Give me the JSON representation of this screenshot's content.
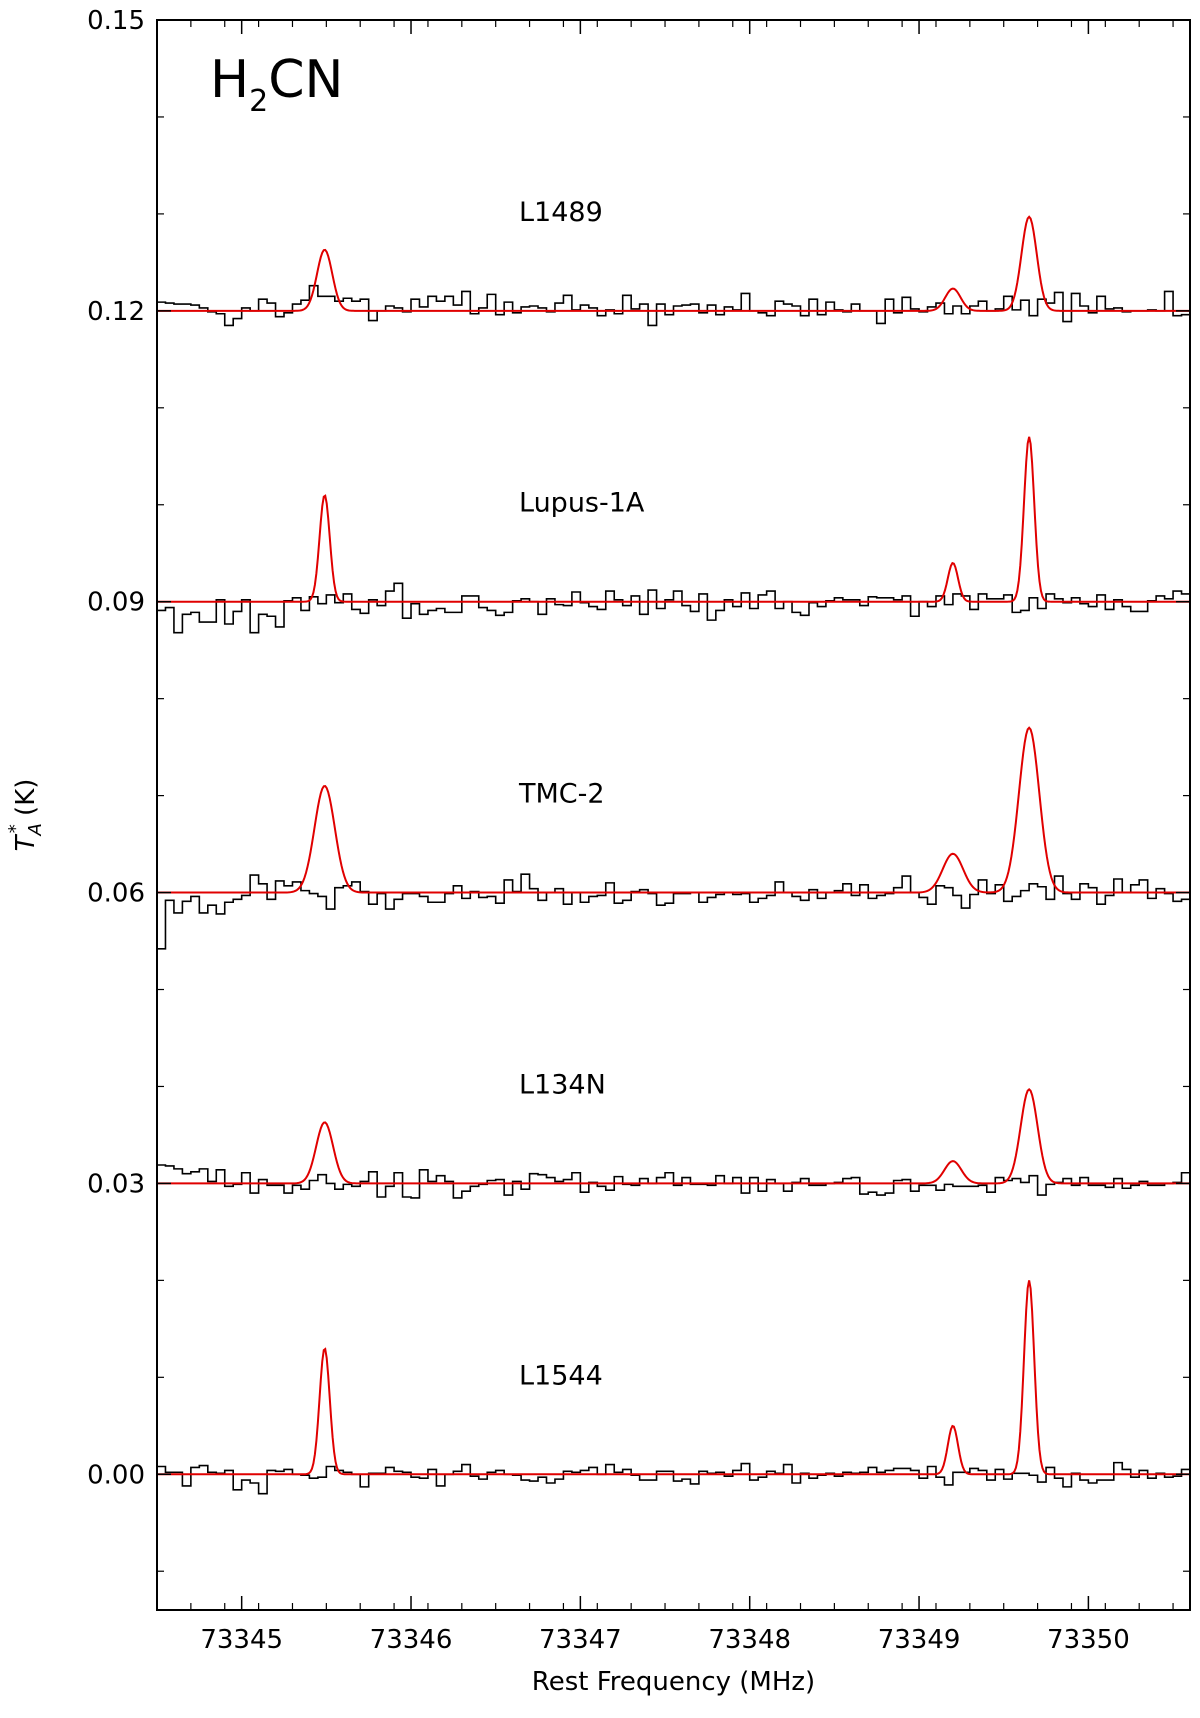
{
  "chart_data": {
    "type": "line",
    "title": "",
    "species_label": {
      "main": "H",
      "sub": "2",
      "rest": "CN"
    },
    "xlabel": "Rest Frequency (MHz)",
    "ylabel": {
      "main": "T",
      "sub": "A",
      "sup": "*",
      "unit": " (K)"
    },
    "xlim": [
      73344.5,
      73350.6
    ],
    "ylim": [
      -0.014,
      0.15
    ],
    "xticks": [
      73345,
      73346,
      73347,
      73348,
      73349,
      73350
    ],
    "xtick_labels": [
      "73345",
      "73346",
      "73347",
      "73348",
      "73349",
      "73350"
    ],
    "yticks": [
      0.0,
      0.03,
      0.06,
      0.09,
      0.12,
      0.15
    ],
    "ytick_labels": [
      "0.00",
      "0.03",
      "0.06",
      "0.09",
      "0.12",
      "0.15"
    ],
    "grid": false,
    "channel_width_mhz": 0.05,
    "spectrum_color": "#000000",
    "fit_color": "#e00000",
    "line_centers_mhz": [
      73345.49,
      73349.2,
      73349.65
    ],
    "series": [
      {
        "name": "L1489",
        "offset": 0.12,
        "fit_peaks": [
          0.0063,
          0.0023,
          0.0097
        ],
        "fit_sigmas": [
          0.045,
          0.045,
          0.045
        ],
        "spectrum_x0": 73344.5,
        "spectrum_values": [
          0.1209,
          0.1208,
          0.1207,
          0.1207,
          0.1206,
          0.1203,
          0.1199,
          0.1197,
          0.1185,
          0.1192,
          0.1203,
          0.12,
          0.1212,
          0.1208,
          0.1194,
          0.1198,
          0.1207,
          0.1211,
          0.1226,
          0.1215,
          0.1215,
          0.121,
          0.1213,
          0.121,
          0.1212,
          0.119,
          0.12,
          0.1205,
          0.1203,
          0.1199,
          0.1212,
          0.1204,
          0.1215,
          0.121,
          0.1215,
          0.1206,
          0.122,
          0.1197,
          0.1203,
          0.1217,
          0.1196,
          0.1209,
          0.1198,
          0.1204,
          0.1205,
          0.1203,
          0.1199,
          0.1208,
          0.1216,
          0.1201,
          0.1206,
          0.1203,
          0.1195,
          0.1201,
          0.1197,
          0.1216,
          0.1202,
          0.1207,
          0.1185,
          0.1207,
          0.1196,
          0.1205,
          0.1206,
          0.1207,
          0.1198,
          0.1206,
          0.1196,
          0.1204,
          0.1201,
          0.1218,
          0.12,
          0.1198,
          0.1195,
          0.121,
          0.1207,
          0.1205,
          0.1195,
          0.1212,
          0.1196,
          0.1209,
          0.1201,
          0.1199,
          0.1207,
          0.12,
          0.12,
          0.1187,
          0.1212,
          0.1198,
          0.1214,
          0.1202,
          0.1199,
          0.1204,
          0.1208,
          0.1197,
          0.1205,
          0.1197,
          0.1205,
          0.121,
          0.12,
          0.1202,
          0.1215,
          0.1201,
          0.1211,
          0.1195,
          0.1212,
          0.1208,
          0.1219,
          0.1189,
          0.1218,
          0.1205,
          0.1198,
          0.1215,
          0.1202,
          0.1203,
          0.1199,
          0.12,
          0.12,
          0.1201,
          0.12,
          0.122,
          0.1195,
          0.1196
        ]
      },
      {
        "name": "Lupus-1A",
        "offset": 0.09,
        "fit_peaks": [
          0.011,
          0.004,
          0.017
        ],
        "fit_sigmas": [
          0.03,
          0.03,
          0.03
        ],
        "spectrum_x0": 73344.5,
        "spectrum_values": [
          0.0891,
          0.0894,
          0.0868,
          0.0887,
          0.0889,
          0.0879,
          0.0879,
          0.0902,
          0.0877,
          0.089,
          0.0902,
          0.0868,
          0.0887,
          0.0885,
          0.0874,
          0.0901,
          0.0904,
          0.0891,
          0.0905,
          0.0898,
          0.0907,
          0.0899,
          0.0908,
          0.0892,
          0.0888,
          0.0902,
          0.0896,
          0.0911,
          0.0919,
          0.0883,
          0.0898,
          0.0887,
          0.0891,
          0.0893,
          0.0889,
          0.0889,
          0.0906,
          0.0906,
          0.0894,
          0.0891,
          0.0886,
          0.0889,
          0.0901,
          0.0903,
          0.09,
          0.0887,
          0.0903,
          0.0897,
          0.0896,
          0.091,
          0.0899,
          0.0895,
          0.0892,
          0.0911,
          0.0902,
          0.0896,
          0.0906,
          0.0887,
          0.0912,
          0.0893,
          0.0902,
          0.0911,
          0.0896,
          0.089,
          0.0908,
          0.0881,
          0.0891,
          0.0902,
          0.0895,
          0.0909,
          0.0893,
          0.0907,
          0.0911,
          0.0893,
          0.09,
          0.0889,
          0.0886,
          0.0899,
          0.0895,
          0.0901,
          0.0904,
          0.0902,
          0.0902,
          0.0896,
          0.0905,
          0.0904,
          0.0904,
          0.0902,
          0.0906,
          0.0885,
          0.09,
          0.0895,
          0.0906,
          0.0897,
          0.0908,
          0.0906,
          0.0892,
          0.0908,
          0.0903,
          0.0903,
          0.0907,
          0.0889,
          0.0891,
          0.0904,
          0.0893,
          0.0908,
          0.0903,
          0.0899,
          0.0904,
          0.0898,
          0.0895,
          0.0907,
          0.0892,
          0.0902,
          0.0895,
          0.089,
          0.089,
          0.0901,
          0.0906,
          0.0903,
          0.0911,
          0.0908
        ]
      },
      {
        "name": "TMC-2",
        "offset": 0.06,
        "fit_peaks": [
          0.011,
          0.004,
          0.017
        ],
        "fit_sigmas": [
          0.06,
          0.06,
          0.06
        ],
        "spectrum_x0": 73344.5,
        "spectrum_values": [
          0.0542,
          0.0592,
          0.0579,
          0.0591,
          0.0596,
          0.0579,
          0.0587,
          0.0578,
          0.059,
          0.0593,
          0.0597,
          0.0618,
          0.0609,
          0.0593,
          0.0612,
          0.0607,
          0.0611,
          0.0602,
          0.0599,
          0.0596,
          0.0583,
          0.0605,
          0.0607,
          0.0611,
          0.0601,
          0.0588,
          0.0599,
          0.0583,
          0.0593,
          0.0599,
          0.0599,
          0.0596,
          0.059,
          0.059,
          0.0599,
          0.0607,
          0.0594,
          0.0601,
          0.0595,
          0.0596,
          0.0589,
          0.0613,
          0.0601,
          0.0619,
          0.0604,
          0.0592,
          0.06,
          0.0604,
          0.0588,
          0.06,
          0.059,
          0.0596,
          0.0597,
          0.061,
          0.0589,
          0.0592,
          0.0601,
          0.0603,
          0.0599,
          0.0587,
          0.0589,
          0.0599,
          0.0599,
          0.06,
          0.059,
          0.0595,
          0.0598,
          0.06,
          0.0598,
          0.0599,
          0.059,
          0.0594,
          0.0597,
          0.0611,
          0.06,
          0.0596,
          0.0592,
          0.0603,
          0.0594,
          0.06,
          0.0602,
          0.0609,
          0.0597,
          0.0608,
          0.0594,
          0.0597,
          0.0599,
          0.0605,
          0.0617,
          0.06,
          0.0595,
          0.0588,
          0.0607,
          0.0605,
          0.0597,
          0.0584,
          0.0598,
          0.0613,
          0.0599,
          0.0608,
          0.0591,
          0.0596,
          0.0602,
          0.0609,
          0.0606,
          0.0593,
          0.0617,
          0.0599,
          0.0593,
          0.0609,
          0.0605,
          0.0588,
          0.0597,
          0.0614,
          0.06,
          0.0608,
          0.0613,
          0.0594,
          0.0604,
          0.0599,
          0.0591,
          0.0593
        ]
      },
      {
        "name": "L134N",
        "offset": 0.03,
        "fit_peaks": [
          0.0063,
          0.0023,
          0.0097
        ],
        "fit_sigmas": [
          0.05,
          0.05,
          0.05
        ],
        "spectrum_x0": 73344.5,
        "spectrum_values": [
          0.0319,
          0.0318,
          0.0315,
          0.031,
          0.0312,
          0.0315,
          0.0302,
          0.0314,
          0.0297,
          0.0299,
          0.0311,
          0.029,
          0.0304,
          0.0298,
          0.0298,
          0.029,
          0.0298,
          0.0294,
          0.0303,
          0.0309,
          0.03,
          0.0294,
          0.0299,
          0.0297,
          0.0302,
          0.0312,
          0.0286,
          0.0297,
          0.0311,
          0.0286,
          0.0285,
          0.0314,
          0.0302,
          0.0308,
          0.0302,
          0.0285,
          0.0292,
          0.0297,
          0.0299,
          0.0303,
          0.0304,
          0.0288,
          0.0302,
          0.0294,
          0.031,
          0.0309,
          0.0306,
          0.0302,
          0.0304,
          0.0311,
          0.0291,
          0.0301,
          0.0297,
          0.0293,
          0.0307,
          0.0299,
          0.0298,
          0.0305,
          0.03,
          0.0306,
          0.0311,
          0.0298,
          0.0306,
          0.0299,
          0.0299,
          0.0298,
          0.0308,
          0.03,
          0.0306,
          0.029,
          0.0306,
          0.0292,
          0.0304,
          0.03,
          0.0292,
          0.0301,
          0.0305,
          0.0298,
          0.0298,
          0.03,
          0.0301,
          0.0305,
          0.0306,
          0.0289,
          0.0291,
          0.0288,
          0.029,
          0.0303,
          0.0304,
          0.0292,
          0.0298,
          0.0298,
          0.0293,
          0.0299,
          0.0297,
          0.0297,
          0.0297,
          0.0298,
          0.0291,
          0.0306,
          0.0303,
          0.0305,
          0.0301,
          0.0308,
          0.0288,
          0.0299,
          0.0301,
          0.0305,
          0.0298,
          0.0306,
          0.0298,
          0.0298,
          0.0296,
          0.0305,
          0.0295,
          0.0298,
          0.0302,
          0.0298,
          0.0298,
          0.03,
          0.0301,
          0.0311
        ]
      },
      {
        "name": "L1544",
        "offset": 0.0,
        "fit_peaks": [
          0.013,
          0.005,
          0.02
        ],
        "fit_sigmas": [
          0.03,
          0.03,
          0.03
        ],
        "spectrum_x0": 73344.5,
        "spectrum_values": [
          0.0008,
          0.0002,
          0.0002,
          -0.0012,
          0.0007,
          0.0009,
          0.0002,
          0.0001,
          0.0004,
          -0.0016,
          -0.0006,
          -0.0009,
          -0.002,
          0.0004,
          0.0003,
          0.0005,
          0.0,
          -0.0001,
          -0.0004,
          -0.0003,
          0.0008,
          0.0004,
          0.0002,
          0.0,
          -0.0013,
          0.0001,
          0.0001,
          0.0007,
          0.0003,
          0.0002,
          -0.0003,
          -0.0004,
          0.0005,
          -0.0012,
          0.0,
          0.0003,
          0.001,
          -0.0002,
          -0.0005,
          0.0002,
          0.0004,
          0.0,
          -0.0001,
          -0.0006,
          -0.0007,
          -0.0003,
          -0.0009,
          -0.0005,
          0.0003,
          0.0002,
          0.0004,
          0.0007,
          0.0,
          0.001,
          0.0002,
          0.0005,
          -0.0001,
          -0.0006,
          -0.0006,
          0.0003,
          0.0003,
          -0.0007,
          -0.0005,
          -0.001,
          0.0003,
          0.0001,
          0.0002,
          -0.0002,
          0.0004,
          0.0011,
          -0.0006,
          -0.0003,
          0.0003,
          0.0001,
          0.001,
          -0.0009,
          0.0001,
          -0.0004,
          -0.0001,
          0.0001,
          -0.0002,
          0.0002,
          0.0001,
          0.0002,
          0.0007,
          0.0002,
          0.0004,
          0.0006,
          0.0006,
          0.0004,
          -0.0004,
          0.0008,
          -0.0003,
          -0.0011,
          0.0002,
          0.0002,
          0.0006,
          0.0004,
          -0.0006,
          0.0005,
          -0.0005,
          0.0001,
          0.0001,
          -0.0001,
          -0.0008,
          0.0007,
          -0.0004,
          -0.0013,
          0.0001,
          -0.0006,
          -0.0009,
          -0.0006,
          -0.0006,
          0.0012,
          0.0005,
          -0.0003,
          0.0004,
          -0.0004,
          0.0001,
          -0.0003,
          -0.0002,
          0.0005
        ]
      }
    ]
  }
}
